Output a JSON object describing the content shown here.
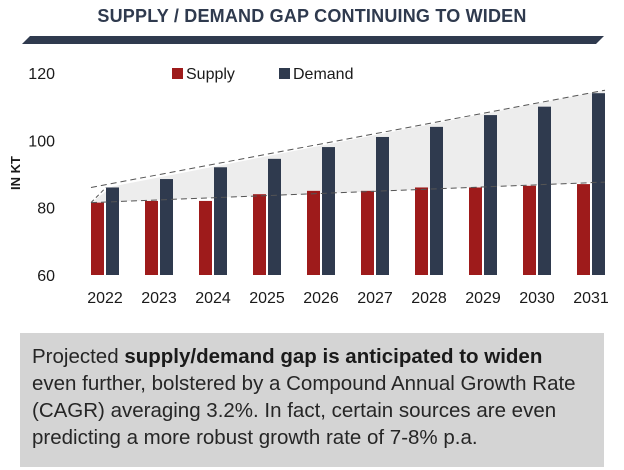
{
  "header": {
    "title": "SUPPLY / DEMAND GAP CONTINUING TO WIDEN"
  },
  "chart_data": {
    "type": "bar",
    "categories": [
      "2022",
      "2023",
      "2024",
      "2025",
      "2026",
      "2027",
      "2028",
      "2029",
      "2030",
      "2031"
    ],
    "series": [
      {
        "name": "Supply",
        "color": "#9e1b1b",
        "values": [
          81.5,
          82,
          82,
          84,
          85,
          85,
          86,
          86,
          86.5,
          87
        ]
      },
      {
        "name": "Demand",
        "color": "#2f3a4e",
        "values": [
          86,
          88.5,
          92,
          94.5,
          98,
          101,
          104,
          107.5,
          110,
          114
        ]
      }
    ],
    "ylabel": "IN KT",
    "ylim": [
      60,
      120
    ],
    "yticks": [
      60,
      80,
      100,
      120
    ],
    "grid": false,
    "legend": "top",
    "gap_band": {
      "shaded": true,
      "color": "#ededed",
      "dashed_trend_lines": true
    }
  },
  "caption": {
    "lead": "Projected ",
    "bold": "supply/demand gap is anticipated to widen",
    "rest": " even further, bolstered by a Compound Annual Growth Rate (CAGR) averaging 3.2%. In fact, certain sources are even predicting a more robust growth rate of 7-8% p.a."
  }
}
